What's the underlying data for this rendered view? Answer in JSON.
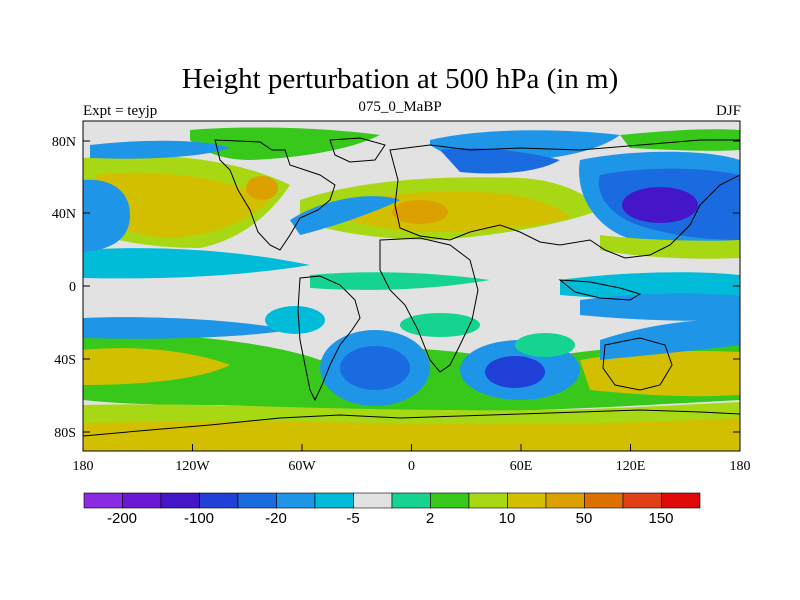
{
  "title": "Height perturbation at 500 hPa (in m)",
  "left_subtitle": "Expt = teyjp",
  "center_subtitle": "075_0_MaBP",
  "right_subtitle": "DJF",
  "lat_labels": [
    "80N",
    "40N",
    "0",
    "40S",
    "80S"
  ],
  "lon_labels": [
    "180",
    "120W",
    "60W",
    "0",
    "60E",
    "120E",
    "180"
  ],
  "colorbar": {
    "colors": [
      "#8a2be2",
      "#6a18d4",
      "#4416c8",
      "#1f3fd6",
      "#1a6be0",
      "#1f95e8",
      "#00bcd8",
      "#e2e2e2",
      "#14d490",
      "#38c81c",
      "#a8d814",
      "#d2c000",
      "#dca000",
      "#dc7000",
      "#e04018",
      "#e00a0a"
    ],
    "labels": [
      "-200",
      "-100",
      "-20",
      "-5",
      "2",
      "10",
      "50",
      "150"
    ]
  },
  "field_colors": {
    "neutral": "#e2e2e2",
    "ltgreen": "#14d490",
    "green": "#38c81c",
    "yellowgreen": "#a8d814",
    "yellow": "#d2c000",
    "orange": "#dca000",
    "cyan": "#00bcd8",
    "ltblue": "#1f95e8",
    "blue": "#1a6be0",
    "dkblue": "#1f3fd6",
    "purple": "#4416c8"
  }
}
